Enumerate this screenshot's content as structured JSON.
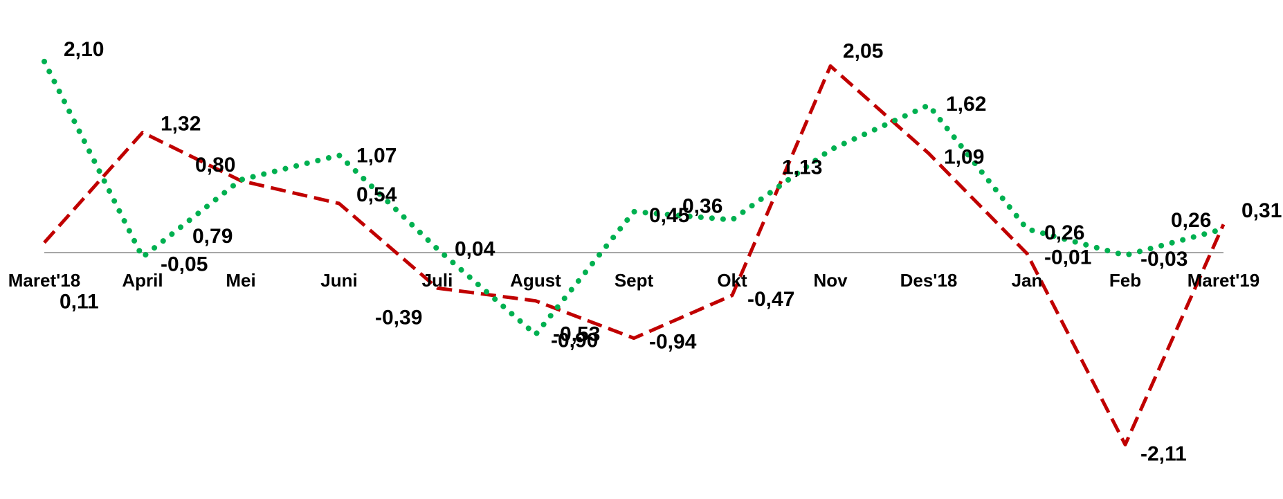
{
  "chart_data": {
    "type": "line",
    "categories": [
      "Maret'18",
      "April",
      "Mei",
      "Juni",
      "Juli",
      "Agust",
      "Sept",
      "Okt",
      "Nov",
      "Des'18",
      "Jan",
      "Feb",
      "Maret'19"
    ],
    "series": [
      {
        "style": "dashed",
        "color": "#c00000",
        "values": [
          0.11,
          1.32,
          0.79,
          0.54,
          -0.39,
          -0.53,
          -0.94,
          -0.47,
          2.05,
          1.09,
          -0.01,
          -2.11,
          0.31
        ],
        "labels": [
          "0,11",
          "1,32",
          "0,79",
          "0,54",
          "-0,39",
          "-0,53",
          "-0,94",
          "-0,47",
          "2,05",
          "1,09",
          "-0,01",
          "-2,11",
          "0,31"
        ]
      },
      {
        "style": "dotted",
        "color": "#00b050",
        "values": [
          2.1,
          -0.05,
          0.8,
          1.07,
          0.04,
          -0.9,
          0.45,
          0.36,
          1.13,
          1.62,
          0.26,
          -0.03,
          0.26
        ],
        "labels": [
          "2,10",
          "-0,05",
          "0,80",
          "1,07",
          "0,04",
          "-0,90",
          "0,45",
          "0,36",
          "1,13",
          "1,62",
          "0,26",
          "-0,03",
          "0,26"
        ]
      }
    ],
    "ylim": [
      -2.3,
      2.35
    ],
    "grid": false,
    "legend": "none"
  }
}
